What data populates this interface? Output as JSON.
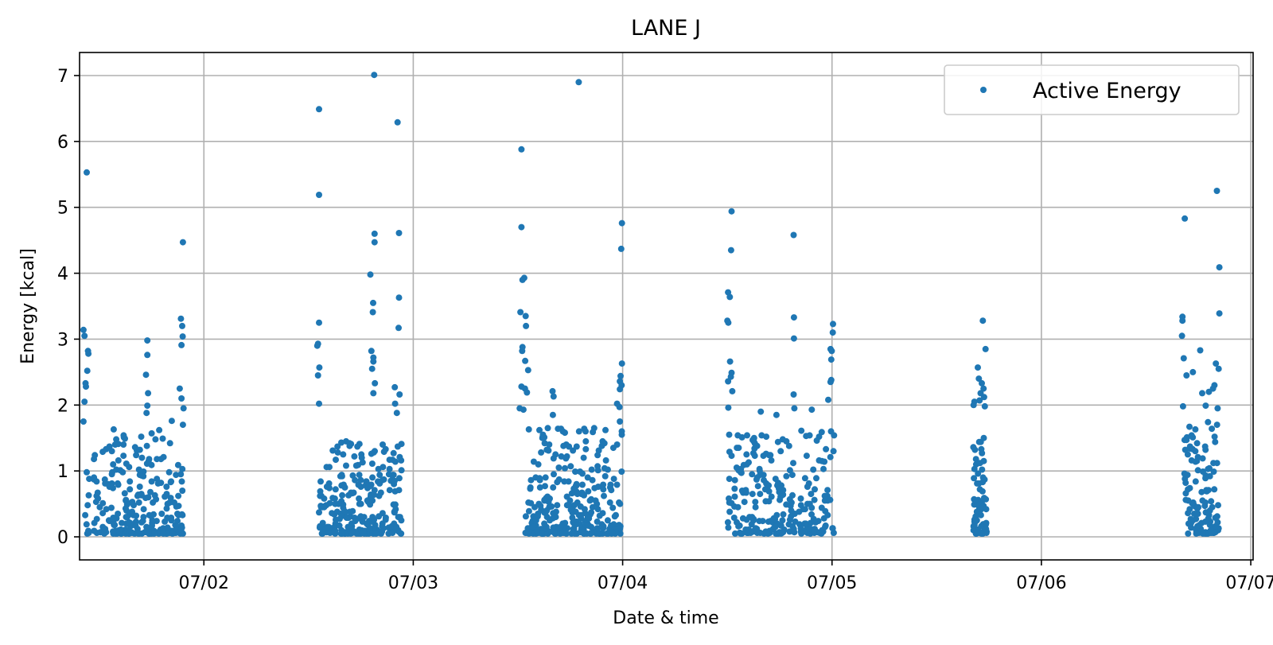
{
  "chart_data": {
    "type": "scatter",
    "title": "LANE J",
    "xlabel": "Date & time",
    "ylabel": "Energy [kcal]",
    "x_tick_labels": [
      "07/02",
      "07/03",
      "07/04",
      "07/05",
      "07/06",
      "07/07"
    ],
    "y_ticks": [
      0,
      1,
      2,
      3,
      4,
      5,
      6,
      7
    ],
    "xlim": [
      "07/01 09:45",
      "07/07 00:16"
    ],
    "ylim": [
      -0.35,
      7.35
    ],
    "grid": true,
    "legend_position": "top-right",
    "series": [
      {
        "name": "Active Energy",
        "color": "#1f77b4",
        "clusters": [
          {
            "start": "07/01 10:24",
            "end": "07/01 21:36",
            "n": 260,
            "max": 1.6
          },
          {
            "start": "07/02 13:12",
            "end": "07/02 22:48",
            "n": 240,
            "max": 1.4
          },
          {
            "start": "07/03 12:48",
            "end": "07/03 23:59",
            "n": 280,
            "max": 1.6
          },
          {
            "start": "07/04 12:00",
            "end": "07/05 00:14",
            "n": 250,
            "max": 1.6
          },
          {
            "start": "07/05 16:12",
            "end": "07/05 17:45",
            "n": 70,
            "max": 1.5
          },
          {
            "start": "07/06 16:24",
            "end": "07/06 20:24",
            "n": 110,
            "max": 1.7
          }
        ],
        "points": [
          [
            "07/01 10:34",
            5.53
          ],
          [
            "07/01 21:36",
            4.47
          ],
          [
            "07/01 21:22",
            3.31
          ],
          [
            "07/01 21:31",
            3.2
          ],
          [
            "07/01 10:12",
            3.14
          ],
          [
            "07/01 10:19",
            3.05
          ],
          [
            "07/01 21:34",
            3.04
          ],
          [
            "07/01 17:31",
            2.98
          ],
          [
            "07/01 21:26",
            2.91
          ],
          [
            "07/01 10:43",
            2.82
          ],
          [
            "07/01 10:46",
            2.78
          ],
          [
            "07/01 17:31",
            2.76
          ],
          [
            "07/01 10:38",
            2.52
          ],
          [
            "07/01 17:22",
            2.46
          ],
          [
            "07/01 10:26",
            2.33
          ],
          [
            "07/01 10:29",
            2.28
          ],
          [
            "07/01 21:14",
            2.25
          ],
          [
            "07/01 17:36",
            2.18
          ],
          [
            "07/01 21:26",
            2.1
          ],
          [
            "07/01 10:19",
            2.05
          ],
          [
            "07/01 17:31",
            1.99
          ],
          [
            "07/01 21:40",
            1.95
          ],
          [
            "07/01 17:26",
            1.88
          ],
          [
            "07/01 20:19",
            1.76
          ],
          [
            "07/01 10:12",
            1.75
          ],
          [
            "07/01 21:36",
            1.7
          ],
          [
            "07/02 13:12",
            6.49
          ],
          [
            "07/02 13:12",
            5.19
          ],
          [
            "07/02 13:12",
            3.25
          ],
          [
            "07/02 13:05",
            2.93
          ],
          [
            "07/02 13:00",
            2.9
          ],
          [
            "07/02 13:14",
            2.57
          ],
          [
            "07/02 13:05",
            2.45
          ],
          [
            "07/02 13:12",
            2.02
          ],
          [
            "07/02 19:31",
            7.01
          ],
          [
            "07/02 19:34",
            4.6
          ],
          [
            "07/02 19:34",
            4.47
          ],
          [
            "07/02 19:05",
            3.98
          ],
          [
            "07/02 19:24",
            3.55
          ],
          [
            "07/02 19:22",
            3.41
          ],
          [
            "07/02 19:12",
            2.82
          ],
          [
            "07/02 19:26",
            2.72
          ],
          [
            "07/02 19:26",
            2.66
          ],
          [
            "07/02 19:17",
            2.55
          ],
          [
            "07/02 19:36",
            2.33
          ],
          [
            "07/02 19:26",
            2.18
          ],
          [
            "07/02 22:12",
            6.29
          ],
          [
            "07/02 22:22",
            4.61
          ],
          [
            "07/02 22:22",
            3.63
          ],
          [
            "07/02 22:19",
            3.17
          ],
          [
            "07/02 21:53",
            2.27
          ],
          [
            "07/02 22:26",
            2.16
          ],
          [
            "07/02 21:55",
            2.02
          ],
          [
            "07/02 22:07",
            1.88
          ],
          [
            "07/03 12:24",
            5.88
          ],
          [
            "07/03 12:24",
            4.7
          ],
          [
            "07/03 12:43",
            3.93
          ],
          [
            "07/03 12:31",
            3.9
          ],
          [
            "07/03 12:17",
            3.41
          ],
          [
            "07/03 12:53",
            3.35
          ],
          [
            "07/03 12:55",
            3.2
          ],
          [
            "07/03 12:31",
            2.88
          ],
          [
            "07/03 12:29",
            2.82
          ],
          [
            "07/03 12:50",
            2.67
          ],
          [
            "07/03 13:10",
            2.53
          ],
          [
            "07/03 12:24",
            2.28
          ],
          [
            "07/03 12:48",
            2.25
          ],
          [
            "07/03 13:02",
            2.19
          ],
          [
            "07/03 12:12",
            1.95
          ],
          [
            "07/03 12:38",
            1.93
          ],
          [
            "07/03 18:58",
            6.9
          ],
          [
            "07/03 15:58",
            2.21
          ],
          [
            "07/03 16:05",
            2.13
          ],
          [
            "07/03 16:00",
            1.85
          ],
          [
            "07/03 23:55",
            4.76
          ],
          [
            "07/03 23:50",
            4.37
          ],
          [
            "07/03 23:55",
            2.63
          ],
          [
            "07/03 23:46",
            2.44
          ],
          [
            "07/03 23:41",
            2.36
          ],
          [
            "07/03 23:53",
            2.3
          ],
          [
            "07/03 23:41",
            2.24
          ],
          [
            "07/03 23:22",
            2.02
          ],
          [
            "07/03 23:38",
            1.97
          ],
          [
            "07/03 23:41",
            1.75
          ],
          [
            "07/04 12:29",
            4.94
          ],
          [
            "07/04 12:26",
            4.35
          ],
          [
            "07/04 12:05",
            3.71
          ],
          [
            "07/04 12:17",
            3.64
          ],
          [
            "07/04 12:00",
            3.28
          ],
          [
            "07/04 12:07",
            3.25
          ],
          [
            "07/04 12:19",
            2.66
          ],
          [
            "07/04 12:29",
            2.49
          ],
          [
            "07/04 12:24",
            2.43
          ],
          [
            "07/04 12:05",
            2.36
          ],
          [
            "07/04 12:34",
            2.21
          ],
          [
            "07/04 12:07",
            1.96
          ],
          [
            "07/04 19:36",
            4.58
          ],
          [
            "07/04 19:38",
            3.33
          ],
          [
            "07/04 19:38",
            3.01
          ],
          [
            "07/04 19:36",
            2.16
          ],
          [
            "07/04 19:41",
            1.95
          ],
          [
            "07/04 15:50",
            1.9
          ],
          [
            "07/04 17:38",
            1.85
          ],
          [
            "07/04 21:41",
            1.93
          ],
          [
            "07/05 00:07",
            3.23
          ],
          [
            "07/05 00:05",
            3.1
          ],
          [
            "07/04 23:50",
            2.85
          ],
          [
            "07/04 23:58",
            2.82
          ],
          [
            "07/04 23:55",
            2.69
          ],
          [
            "07/04 23:55",
            2.38
          ],
          [
            "07/04 23:50",
            2.35
          ],
          [
            "07/04 23:34",
            2.08
          ],
          [
            "07/05 17:17",
            3.28
          ],
          [
            "07/05 17:36",
            2.85
          ],
          [
            "07/05 16:43",
            2.57
          ],
          [
            "07/05 16:50",
            2.4
          ],
          [
            "07/05 17:10",
            2.33
          ],
          [
            "07/05 17:22",
            2.25
          ],
          [
            "07/05 17:02",
            2.18
          ],
          [
            "07/05 17:26",
            2.12
          ],
          [
            "07/05 16:55",
            2.07
          ],
          [
            "07/05 16:19",
            2.05
          ],
          [
            "07/05 16:14",
            2.0
          ],
          [
            "07/05 17:31",
            1.98
          ],
          [
            "07/06 20:07",
            5.25
          ],
          [
            "07/06 16:26",
            4.83
          ],
          [
            "07/06 20:24",
            4.09
          ],
          [
            "07/06 20:24",
            3.39
          ],
          [
            "07/06 16:10",
            3.34
          ],
          [
            "07/06 16:10",
            3.28
          ],
          [
            "07/06 16:07",
            3.05
          ],
          [
            "07/06 18:12",
            2.83
          ],
          [
            "07/06 16:19",
            2.71
          ],
          [
            "07/06 20:00",
            2.63
          ],
          [
            "07/06 20:19",
            2.55
          ],
          [
            "07/06 17:22",
            2.5
          ],
          [
            "07/06 16:38",
            2.45
          ],
          [
            "07/06 19:50",
            2.3
          ],
          [
            "07/06 19:40",
            2.25
          ],
          [
            "07/06 19:12",
            2.2
          ],
          [
            "07/06 18:26",
            2.18
          ],
          [
            "07/06 16:14",
            1.98
          ],
          [
            "07/06 20:12",
            1.95
          ],
          [
            "07/06 18:50",
            1.99
          ]
        ]
      }
    ]
  }
}
